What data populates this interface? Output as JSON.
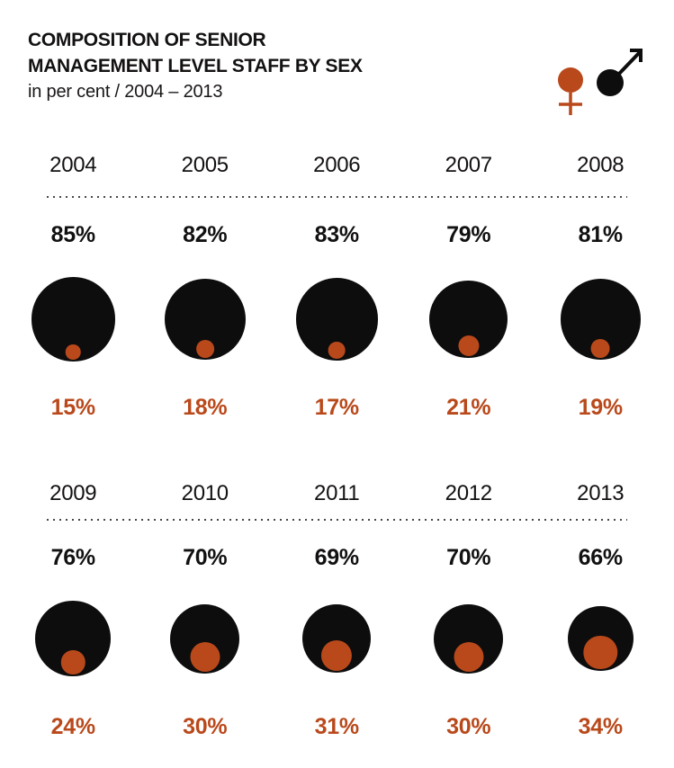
{
  "header": {
    "title_line1": "COMPOSITION OF SENIOR",
    "title_line2": "MANAGEMENT LEVEL STAFF BY SEX",
    "subtitle": "in per cent / 2004 – 2013"
  },
  "legend": {
    "female_symbol": "female-sign",
    "male_symbol": "male-sign",
    "female_color": "#b9491b",
    "male_color": "#0e0d0d"
  },
  "colors": {
    "male": "#0e0d0d",
    "female": "#b9491b",
    "text": "#141111",
    "dotted_line": "#4a4646",
    "background": "#ffffff"
  },
  "chart_data": {
    "type": "proportional-circles",
    "title": "COMPOSITION OF SENIOR MANAGEMENT LEVEL STAFF BY SEX",
    "unit": "per cent",
    "period": "2004 – 2013",
    "legend_position": "top-right",
    "categories": [
      "2004",
      "2005",
      "2006",
      "2007",
      "2008",
      "2009",
      "2010",
      "2011",
      "2012",
      "2013"
    ],
    "series": [
      {
        "name": "male",
        "color": "#0e0d0d",
        "values": [
          85,
          82,
          83,
          79,
          81,
          76,
          70,
          69,
          70,
          66
        ]
      },
      {
        "name": "female",
        "color": "#b9491b",
        "values": [
          15,
          18,
          17,
          21,
          19,
          24,
          30,
          31,
          30,
          34
        ]
      }
    ],
    "groups": [
      {
        "columns": [
          {
            "year": "2004",
            "male": 85,
            "female": 15,
            "male_label": "85%",
            "female_label": "15%"
          },
          {
            "year": "2005",
            "male": 82,
            "female": 18,
            "male_label": "82%",
            "female_label": "18%"
          },
          {
            "year": "2006",
            "male": 83,
            "female": 17,
            "male_label": "83%",
            "female_label": "17%"
          },
          {
            "year": "2007",
            "male": 79,
            "female": 21,
            "male_label": "79%",
            "female_label": "21%"
          },
          {
            "year": "2008",
            "male": 81,
            "female": 19,
            "male_label": "81%",
            "female_label": "19%"
          }
        ]
      },
      {
        "columns": [
          {
            "year": "2009",
            "male": 76,
            "female": 24,
            "male_label": "76%",
            "female_label": "24%"
          },
          {
            "year": "2010",
            "male": 70,
            "female": 30,
            "male_label": "70%",
            "female_label": "30%"
          },
          {
            "year": "2011",
            "male": 69,
            "female": 31,
            "male_label": "69%",
            "female_label": "31%"
          },
          {
            "year": "2012",
            "male": 70,
            "female": 30,
            "male_label": "70%",
            "female_label": "30%"
          },
          {
            "year": "2013",
            "male": 66,
            "female": 34,
            "male_label": "66%",
            "female_label": "34%"
          }
        ]
      }
    ]
  }
}
